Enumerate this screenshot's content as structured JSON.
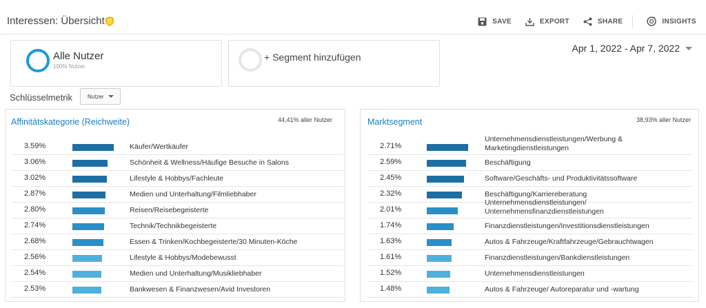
{
  "header": {
    "title": "Interessen: Übersicht",
    "toolbar": {
      "save": "SAVE",
      "export": "EXPORT",
      "share": "SHARE",
      "insights": "INSIGHTS"
    }
  },
  "segments": {
    "primary": {
      "name": "Alle Nutzer",
      "sub": "100% Nutzer"
    },
    "add_label": "+ Segment hinzufügen"
  },
  "date_range": "Apr 1, 2022 - Apr 7, 2022",
  "metric": {
    "label": "Schlüsselmetrik",
    "value": "Nutzer"
  },
  "affinity": {
    "title": "Affinitätskategorie (Reichweite)",
    "stat": "44,41% aller Nutzer",
    "rows": [
      {
        "pct": "3.59%",
        "value": 3.59,
        "label": "Käufer/Wertkäufer"
      },
      {
        "pct": "3.06%",
        "value": 3.06,
        "label": "Schönheit & Wellness/Häufige Besuche in Salons"
      },
      {
        "pct": "3.02%",
        "value": 3.02,
        "label": "Lifestyle & Hobbys/Fachleute"
      },
      {
        "pct": "2.87%",
        "value": 2.87,
        "label": "Medien und Unterhaltung/Filmliebhaber"
      },
      {
        "pct": "2.80%",
        "value": 2.8,
        "label": "Reisen/Reisebegeisterte"
      },
      {
        "pct": "2.74%",
        "value": 2.74,
        "label": "Technik/Technikbegeisterte"
      },
      {
        "pct": "2.68%",
        "value": 2.68,
        "label": "Essen & Trinken/Kochbegeisterte/30 Minuten-Köche"
      },
      {
        "pct": "2.56%",
        "value": 2.56,
        "label": "Lifestyle & Hobbys/Modebewusst"
      },
      {
        "pct": "2.54%",
        "value": 2.54,
        "label": "Medien und Unterhaltung/Musikliebhaber"
      },
      {
        "pct": "2.53%",
        "value": 2.53,
        "label": "Bankwesen & Finanzwesen/Avid Investoren"
      }
    ]
  },
  "market": {
    "title": "Marktsegment",
    "stat": "38,93% aller Nutzer",
    "rows": [
      {
        "pct": "2.71%",
        "value": 2.71,
        "label": "Unternehmensdienstleistungen/Werbung & Marketingdienstleistungen"
      },
      {
        "pct": "2.59%",
        "value": 2.59,
        "label": "Beschäftigung"
      },
      {
        "pct": "2.45%",
        "value": 2.45,
        "label": "Software/Geschäfts- und Produktivitätssoftware"
      },
      {
        "pct": "2.32%",
        "value": 2.32,
        "label": "Beschäftigung/Karriereberatung"
      },
      {
        "pct": "2.01%",
        "value": 2.01,
        "label": "Unternehmensdienstleistungen/ Unternehmensfinanzdienstleistungen"
      },
      {
        "pct": "1.74%",
        "value": 1.74,
        "label": "Finanzdienstleistungen/Investitionsdienstleistungen"
      },
      {
        "pct": "1.63%",
        "value": 1.63,
        "label": "Autos & Fahrzeuge/Kraftfahrzeuge/Gebrauchtwagen"
      },
      {
        "pct": "1.61%",
        "value": 1.61,
        "label": "Finanzdienstleistungen/Bankdienstleistungen"
      },
      {
        "pct": "1.52%",
        "value": 1.52,
        "label": "Unternehmensdienstleistungen"
      },
      {
        "pct": "1.48%",
        "value": 1.48,
        "label": "Autos & Fahrzeuge/ Autoreparatur und -wartung"
      }
    ]
  },
  "colors": {
    "accent": "#1a9bd7",
    "link": "#1a7fc1",
    "bar_dark": "#1d6fa3",
    "bar_light": "#4fb0de"
  },
  "icons": {
    "title_badge": "shield-icon",
    "save": "save-icon",
    "export": "export-icon",
    "share": "share-icon",
    "insights": "insights-icon"
  }
}
